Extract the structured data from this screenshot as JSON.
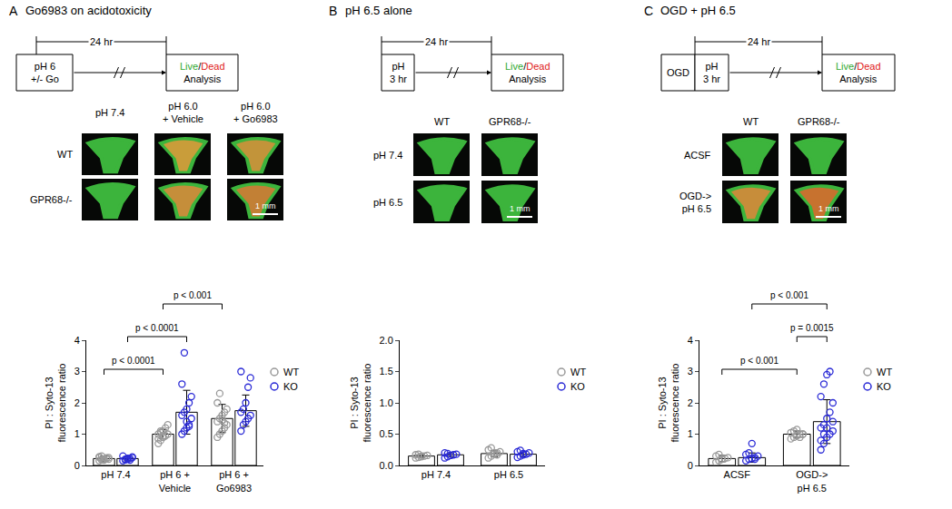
{
  "chart_data": [
    {
      "type": "bar",
      "panel": "A",
      "title": "Go6983 on acidotoxicity",
      "schematic": {
        "steps": [
          "pH 6\n+/- Go"
        ],
        "duration": "24 hr",
        "readout": {
          "live": "Live",
          "sep": "/",
          "dead": "Dead",
          "line2": "Analysis"
        }
      },
      "images": {
        "columns": [
          "pH 7.4",
          "pH 6.0\n+ Vehicle",
          "pH 6.0\n+ Go6983"
        ],
        "rows": [
          {
            "name": "WT",
            "colors": [
              "#3cb43c",
              "#d89a3a",
              "#d0903a"
            ]
          },
          {
            "name": "GPR68-/-",
            "colors": [
              "#3cb43c",
              "#d48a3a",
              "#d07a34"
            ]
          }
        ],
        "scale_bar": "1 mm"
      },
      "ylabel": "PI : Syto-13\nfluorescence ratio",
      "categories": [
        "pH 7.4",
        "pH 6 +\nVehicle",
        "pH 6 +\nGo6983"
      ],
      "series": [
        {
          "name": "WT",
          "color": "#999999",
          "values": [
            0.22,
            1.0,
            1.5
          ],
          "error": [
            0.08,
            0.15,
            0.45
          ],
          "points": [
            [
              0.15,
              0.18,
              0.2,
              0.22,
              0.25,
              0.28,
              0.3,
              0.17,
              0.24,
              0.2,
              0.26,
              0.19
            ],
            [
              0.7,
              0.8,
              0.9,
              0.95,
              1.0,
              1.0,
              1.05,
              1.1,
              1.2,
              1.3,
              0.85,
              1.1,
              0.95
            ],
            [
              0.9,
              1.0,
              1.1,
              1.2,
              1.3,
              1.4,
              1.5,
              1.6,
              1.7,
              1.8,
              2.0,
              2.3,
              1.45,
              1.35
            ]
          ]
        },
        {
          "name": "KO",
          "color": "#2b2bd6",
          "values": [
            0.22,
            1.7,
            1.75
          ],
          "error": [
            0.07,
            0.7,
            0.5
          ],
          "points": [
            [
              0.15,
              0.18,
              0.2,
              0.22,
              0.25,
              0.3,
              0.2,
              0.23,
              0.17,
              0.27
            ],
            [
              1.0,
              1.1,
              1.2,
              1.3,
              1.5,
              1.6,
              1.7,
              1.8,
              2.0,
              2.2,
              2.6,
              3.6,
              1.4,
              1.25
            ],
            [
              1.1,
              1.3,
              1.4,
              1.5,
              1.6,
              1.7,
              1.8,
              2.0,
              2.5,
              2.8,
              3.0
            ]
          ]
        }
      ],
      "ylim": [
        0,
        4
      ],
      "yticks": [
        0,
        1,
        2,
        3,
        4
      ],
      "grid": false,
      "annotations": [
        {
          "from": [
            "pH 7.4",
            "WT"
          ],
          "to": [
            "pH 6 +\nVehicle",
            "WT"
          ],
          "text": "p < 0.0001"
        },
        {
          "from": [
            "pH 7.4",
            "KO"
          ],
          "to": [
            "pH 6 +\nVehicle",
            "KO"
          ],
          "text": "p < 0.0001"
        },
        {
          "from": [
            "pH 6 +\nVehicle",
            "WT"
          ],
          "to": [
            "pH 6 +\nGo6983",
            "WT"
          ],
          "text": "p < 0.001"
        }
      ]
    },
    {
      "type": "bar",
      "panel": "B",
      "title": "pH 6.5 alone",
      "schematic": {
        "steps": [
          "pH\n3 hr"
        ],
        "duration": "24 hr",
        "readout": {
          "live": "Live",
          "sep": "/",
          "dead": "Dead",
          "line2": "Analysis"
        }
      },
      "images": {
        "columns": [
          "WT",
          "GPR68-/-"
        ],
        "rows": [
          {
            "name": "pH 7.4",
            "colors": [
              "#3cb43c",
              "#3cb43c"
            ]
          },
          {
            "name": "pH 6.5",
            "colors": [
              "#3cb43c",
              "#3cb43c"
            ]
          }
        ],
        "scale_bar": "1 mm"
      },
      "ylabel": "PI : Syto-13\nfluorescence ratio",
      "categories": [
        "pH 7.4",
        "pH 6.5"
      ],
      "series": [
        {
          "name": "WT",
          "color": "#999999",
          "values": [
            0.15,
            0.19
          ],
          "error": [
            0.02,
            0.05
          ],
          "points": [
            [
              0.12,
              0.13,
              0.14,
              0.15,
              0.16,
              0.17,
              0.18,
              0.15
            ],
            [
              0.12,
              0.15,
              0.18,
              0.2,
              0.22,
              0.25,
              0.28,
              0.2,
              0.17
            ]
          ]
        },
        {
          "name": "KO",
          "color": "#2b2bd6",
          "values": [
            0.17,
            0.18
          ],
          "error": [
            0.03,
            0.03
          ],
          "points": [
            [
              0.12,
              0.14,
              0.16,
              0.17,
              0.18,
              0.2,
              0.19
            ],
            [
              0.13,
              0.15,
              0.17,
              0.18,
              0.2,
              0.22,
              0.24,
              0.19
            ]
          ]
        }
      ],
      "ylim": [
        0,
        2
      ],
      "yticks": [
        {
          "value": 0,
          "label": "0.0"
        },
        0.5,
        {
          "value": 1,
          "label": "1.0"
        },
        1.5,
        {
          "value": 2,
          "label": "2.0"
        }
      ],
      "grid": false
    },
    {
      "type": "bar",
      "panel": "C",
      "title": "OGD + pH 6.5",
      "schematic": {
        "steps": [
          "OGD",
          "pH\n3 hr"
        ],
        "duration": "24 hr",
        "readout": {
          "live": "Live",
          "sep": "/",
          "dead": "Dead",
          "line2": "Analysis"
        }
      },
      "images": {
        "columns": [
          "WT",
          "GPR68-/-"
        ],
        "rows": [
          {
            "name": "ACSF",
            "colors": [
              "#3cb43c",
              "#3cb43c"
            ]
          },
          {
            "name": "OGD->\npH 6.5",
            "colors": [
              "#d6883a",
              "#d66a2e"
            ]
          }
        ],
        "scale_bar": "1 mm"
      },
      "ylabel": "PI : Syto-13\nfluorescence ratio",
      "categories": [
        "ACSF",
        "OGD->\npH 6.5"
      ],
      "series": [
        {
          "name": "WT",
          "color": "#999999",
          "values": [
            0.22,
            1.0
          ],
          "error": [
            0.1,
            0.1
          ],
          "points": [
            [
              0.1,
              0.15,
              0.2,
              0.22,
              0.25,
              0.3,
              0.35,
              0.2
            ],
            [
              0.85,
              0.9,
              0.95,
              1.0,
              1.0,
              1.05,
              1.1,
              1.15,
              0.9,
              1.0
            ]
          ]
        },
        {
          "name": "KO",
          "color": "#2b2bd6",
          "values": [
            0.25,
            1.4
          ],
          "error": [
            0.15,
            0.7
          ],
          "points": [
            [
              0.15,
              0.2,
              0.22,
              0.25,
              0.3,
              0.35,
              0.4,
              0.7,
              0.2
            ],
            [
              0.5,
              0.7,
              0.9,
              1.0,
              1.1,
              1.2,
              1.3,
              1.5,
              1.7,
              2.0,
              2.2,
              2.6,
              2.9,
              3.0,
              1.4,
              0.8,
              1.0,
              1.2
            ]
          ]
        }
      ],
      "ylim": [
        0,
        4
      ],
      "yticks": [
        0,
        1,
        2,
        3,
        4
      ],
      "grid": false,
      "annotations": [
        {
          "from": [
            "ACSF",
            "WT"
          ],
          "to": [
            "OGD->\npH 6.5",
            "WT"
          ],
          "text": "p < 0.001"
        },
        {
          "from": [
            "OGD->\npH 6.5",
            "WT"
          ],
          "to": [
            "OGD->\npH 6.5",
            "KO"
          ],
          "text": "p = 0.0015"
        },
        {
          "from": [
            "ACSF",
            "KO"
          ],
          "to": [
            "OGD->\npH 6.5",
            "KO"
          ],
          "text": "p < 0.001"
        }
      ]
    }
  ]
}
